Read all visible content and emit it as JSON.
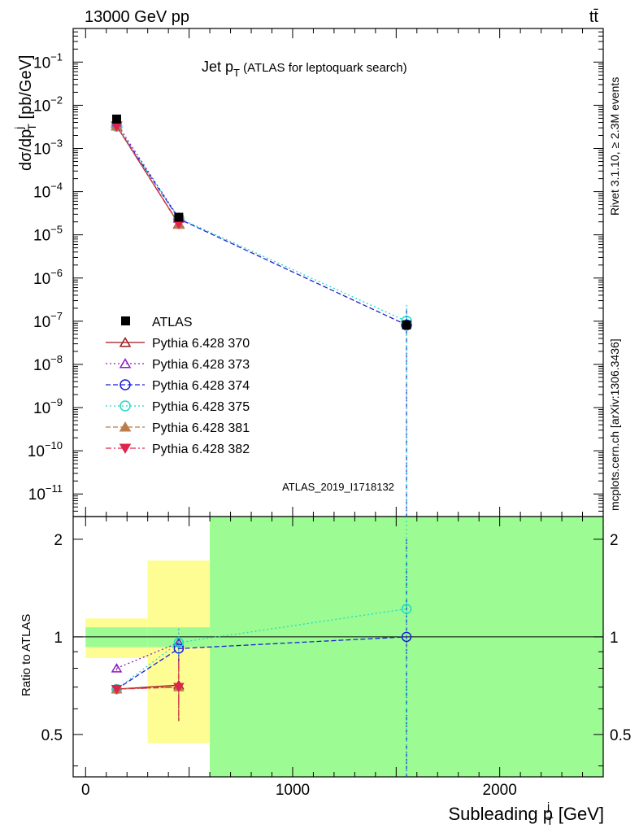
{
  "header": {
    "energy": "13000 GeV pp",
    "process": "tt̄",
    "rivet": "Rivet 3.1.10, ≥ 2.3M events",
    "site": "mcplots.cern.ch [arXiv:1306.3436]",
    "analysis": "ATLAS_2019_I1718132"
  },
  "chart_data": {
    "type": "scatter",
    "title_main": "Jet p",
    "title_sub": "T",
    "title_rest": " (ATLAS for leptoquark search)",
    "ylabel_main": "dσ/dp",
    "ylabel_sup": "j",
    "ylabel_sub": "T",
    "ylabel_rest": " [pb/GeV]",
    "xlabel_main": "Subleading p",
    "xlabel_sup": "j",
    "xlabel_sub": "T",
    "xlabel_rest": " [GeV]",
    "ratio_ylabel": "Ratio to ATLAS",
    "xlim": [
      -60,
      2500
    ],
    "ylim": [
      3e-12,
      0.6
    ],
    "ratio_ylim": [
      0.37,
      2.35
    ],
    "log_y": true,
    "bins": [
      [
        0,
        300
      ],
      [
        300,
        600
      ],
      [
        600,
        2500
      ]
    ],
    "x_ticks": [
      0,
      1000,
      2000
    ],
    "y_ticks": [
      {
        "value": 0.1,
        "label": "10",
        "exp": "−1"
      },
      {
        "value": 0.01,
        "label": "10",
        "exp": "−2"
      },
      {
        "value": 0.001,
        "label": "10",
        "exp": "−3"
      },
      {
        "value": 0.0001,
        "label": "10",
        "exp": "−4"
      },
      {
        "value": 1e-05,
        "label": "10",
        "exp": "−5"
      },
      {
        "value": 1e-06,
        "label": "10",
        "exp": "−6"
      },
      {
        "value": 1e-07,
        "label": "10",
        "exp": "−7"
      },
      {
        "value": 1e-08,
        "label": "10",
        "exp": "−8"
      },
      {
        "value": 1e-09,
        "label": "10",
        "exp": "−9"
      },
      {
        "value": 1e-10,
        "label": "10",
        "exp": "−10"
      },
      {
        "value": 1e-11,
        "label": "10",
        "exp": "−11"
      }
    ],
    "ratio_ticks": [
      0.5,
      1,
      2
    ],
    "data": {
      "name": "ATLAS",
      "x": [
        150,
        450,
        1550
      ],
      "y": [
        0.0048,
        2.55e-05,
        8.2e-08
      ],
      "stat_band": [
        [
          0.93,
          1.07
        ],
        [
          0.93,
          1.07
        ],
        [
          0.0,
          2.35
        ]
      ],
      "total_band": [
        [
          0.86,
          1.14
        ],
        [
          0.47,
          1.72
        ],
        [
          0.0,
          2.35
        ]
      ]
    },
    "series": [
      {
        "name": "Pythia 6.428 370",
        "color": "#a0161c",
        "marker": "triangle-open",
        "dash": "solid",
        "y": [
          0.0033,
          1.8e-05,
          null
        ],
        "ratio": [
          0.69,
          0.71,
          null
        ],
        "ratio_err": [
          0.02,
          0.16,
          null
        ]
      },
      {
        "name": "Pythia 6.428 373",
        "color": "#8d1bc4",
        "marker": "triangle-open",
        "dash": "dot",
        "y": [
          0.0038,
          2.45e-05,
          null
        ],
        "ratio": [
          0.8,
          0.96,
          null
        ],
        "ratio_err": [
          0.02,
          0.1,
          null
        ]
      },
      {
        "name": "Pythia 6.428 374",
        "color": "#1d1dd6",
        "marker": "circle-open",
        "dash": "dash",
        "y": [
          0.0033,
          2.35e-05,
          8.2e-08
        ],
        "ratio": [
          0.69,
          0.92,
          1.0
        ],
        "ratio_err": [
          0.02,
          0.08,
          1.0
        ]
      },
      {
        "name": "Pythia 6.428 375",
        "color": "#1fd9c9",
        "marker": "circle-open",
        "dash": "dot",
        "y": [
          0.0033,
          2.45e-05,
          1e-07
        ],
        "ratio": [
          0.69,
          0.96,
          1.22
        ],
        "ratio_err": [
          0.02,
          0.1,
          1.2
        ]
      },
      {
        "name": "Pythia 6.428 381",
        "color": "#b87d4b",
        "marker": "triangle-filled",
        "dash": "dash",
        "y": [
          0.0033,
          1.75e-05,
          null
        ],
        "ratio": [
          0.69,
          0.7,
          null
        ],
        "ratio_err": [
          0.02,
          0.14,
          null
        ]
      },
      {
        "name": "Pythia 6.428 382",
        "color": "#e0234b",
        "marker": "triangledown-filled",
        "dash": "dashdot",
        "y": [
          0.0033,
          1.8e-05,
          null
        ],
        "ratio": [
          0.69,
          0.7,
          null
        ],
        "ratio_err": [
          0.02,
          0.14,
          null
        ]
      }
    ],
    "colors": {
      "stat_band": "#9cfc93",
      "total_band": "#fdfd93"
    }
  }
}
